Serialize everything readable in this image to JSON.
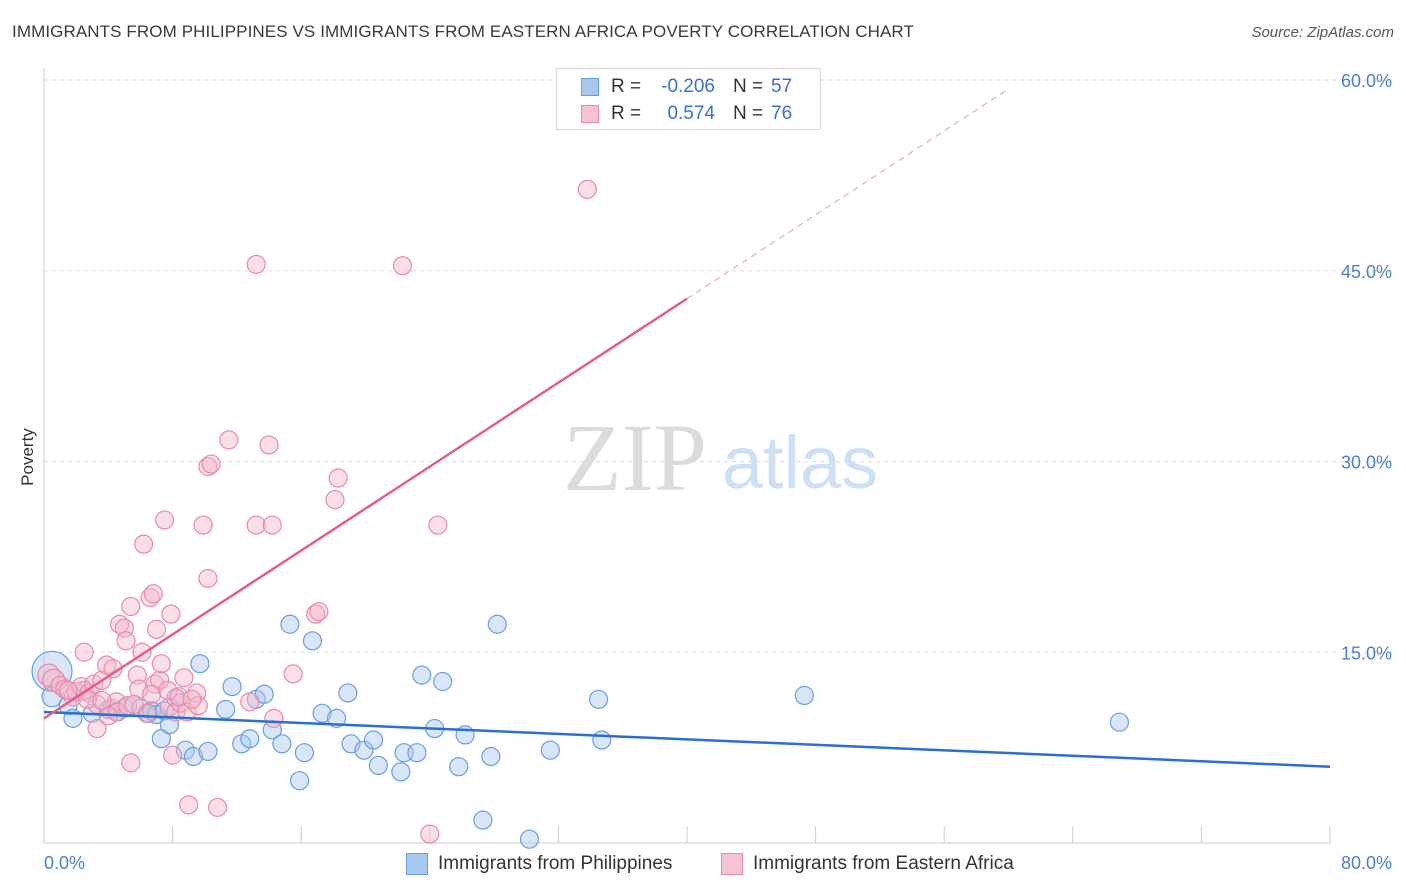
{
  "title": "IMMIGRANTS FROM PHILIPPINES VS IMMIGRANTS FROM EASTERN AFRICA POVERTY CORRELATION CHART",
  "source": "Source: ZipAtlas.com",
  "watermark": {
    "zip": "ZIP",
    "atlas": "atlas"
  },
  "colors": {
    "blue_fill": "#a9c8f0",
    "blue_stroke": "#6a9ee0",
    "blue_line": "#2b6fd0",
    "pink_fill": "#f5b8cc",
    "pink_stroke": "#e98aab",
    "pink_line": "#e0608a",
    "axis_text": "#4a7fd0",
    "grid": "#dddddd"
  },
  "legend_stats": [
    {
      "label": "R =",
      "r": "-0.206",
      "n_label": "N =",
      "n": "57"
    },
    {
      "label": "R =",
      "r": "0.574",
      "n_label": "N =",
      "n": "76"
    }
  ],
  "chart_data": {
    "type": "scatter",
    "title": "IMMIGRANTS FROM PHILIPPINES VS IMMIGRANTS FROM EASTERN AFRICA POVERTY CORRELATION CHART",
    "xlabel": "",
    "ylabel": "Poverty",
    "xlim": [
      0,
      80
    ],
    "ylim": [
      0,
      60
    ],
    "x_tick_labels": [
      "0.0%",
      "80.0%"
    ],
    "y_ticks": [
      15,
      30,
      45,
      60
    ],
    "y_tick_labels": [
      "15.0%",
      "30.0%",
      "45.0%",
      "60.0%"
    ],
    "legend_position": "bottom-center",
    "series": [
      {
        "name": "Immigrants from Philippines",
        "color": "blue",
        "trend": {
          "x0": 0,
          "y0": 10.3,
          "x1": 80,
          "y1": 6.0
        },
        "points": [
          [
            0.5,
            13.5,
            20
          ],
          [
            0.5,
            11.5,
            10
          ],
          [
            1.5,
            10.8,
            9
          ],
          [
            1.8,
            9.8,
            9
          ],
          [
            2.5,
            12.0,
            9
          ],
          [
            3.0,
            10.2,
            9
          ],
          [
            4.0,
            10.5,
            9
          ],
          [
            4.5,
            10.3,
            9
          ],
          [
            5.0,
            10.6,
            9
          ],
          [
            6.0,
            10.6,
            9
          ],
          [
            6.5,
            10.2,
            9
          ],
          [
            6.7,
            10.4,
            9
          ],
          [
            7.0,
            10.1,
            9
          ],
          [
            7.5,
            10.4,
            9
          ],
          [
            7.3,
            8.2,
            9
          ],
          [
            7.8,
            9.3,
            9
          ],
          [
            8.2,
            11.4,
            9
          ],
          [
            8.8,
            7.3,
            9
          ],
          [
            9.3,
            6.8,
            9
          ],
          [
            9.7,
            14.1,
            9
          ],
          [
            10.2,
            7.2,
            9
          ],
          [
            11.3,
            10.5,
            9
          ],
          [
            11.7,
            12.3,
            9
          ],
          [
            12.3,
            7.8,
            9
          ],
          [
            12.8,
            8.2,
            9
          ],
          [
            13.2,
            11.3,
            9
          ],
          [
            13.7,
            11.7,
            9
          ],
          [
            14.2,
            8.9,
            9
          ],
          [
            14.8,
            7.8,
            9
          ],
          [
            15.3,
            17.2,
            9
          ],
          [
            15.9,
            4.9,
            9
          ],
          [
            16.2,
            7.1,
            9
          ],
          [
            16.7,
            15.9,
            9
          ],
          [
            17.3,
            10.2,
            9
          ],
          [
            18.2,
            9.8,
            9
          ],
          [
            18.9,
            11.8,
            9
          ],
          [
            19.1,
            7.8,
            9
          ],
          [
            19.9,
            7.3,
            9
          ],
          [
            20.5,
            8.1,
            9
          ],
          [
            20.8,
            6.1,
            9
          ],
          [
            22.2,
            5.6,
            9
          ],
          [
            22.4,
            7.1,
            9
          ],
          [
            23.2,
            7.1,
            9
          ],
          [
            23.5,
            13.2,
            9
          ],
          [
            24.3,
            9.0,
            9
          ],
          [
            24.8,
            12.7,
            9
          ],
          [
            25.8,
            6.0,
            9
          ],
          [
            26.2,
            8.5,
            9
          ],
          [
            27.3,
            1.8,
            9
          ],
          [
            27.8,
            6.8,
            9
          ],
          [
            28.2,
            17.2,
            9
          ],
          [
            30.2,
            0.3,
            9
          ],
          [
            31.5,
            7.3,
            9
          ],
          [
            34.5,
            11.3,
            9
          ],
          [
            34.7,
            8.1,
            9
          ],
          [
            47.3,
            11.6,
            9
          ],
          [
            66.9,
            9.5,
            9
          ]
        ]
      },
      {
        "name": "Immigrants from Eastern Africa",
        "color": "pink",
        "trend": {
          "x0": 0,
          "y0": 9.8,
          "x1": 40,
          "y1": 42.8
        },
        "trend_dashed": {
          "x0": 40,
          "y0": 42.8,
          "x1": 60,
          "y1": 59.3
        },
        "points": [
          [
            0.3,
            13.2,
            11
          ],
          [
            0.6,
            12.8,
            11
          ],
          [
            1.0,
            12.4,
            9
          ],
          [
            1.3,
            12.1,
            9
          ],
          [
            1.8,
            11.5,
            9
          ],
          [
            2.0,
            11.9,
            9
          ],
          [
            2.3,
            12.3,
            9
          ],
          [
            2.5,
            15.0,
            9
          ],
          [
            2.8,
            11.8,
            9
          ],
          [
            3.1,
            12.5,
            9
          ],
          [
            3.3,
            10.9,
            9
          ],
          [
            3.3,
            9.0,
            9
          ],
          [
            3.6,
            12.8,
            9
          ],
          [
            3.9,
            14.0,
            9
          ],
          [
            4.2,
            10.6,
            9
          ],
          [
            4.3,
            13.7,
            9
          ],
          [
            4.5,
            11.1,
            9
          ],
          [
            4.6,
            10.3,
            9
          ],
          [
            4.7,
            17.2,
            9
          ],
          [
            5.0,
            16.9,
            9
          ],
          [
            5.1,
            15.9,
            9
          ],
          [
            5.2,
            10.8,
            9
          ],
          [
            5.4,
            18.6,
            9
          ],
          [
            5.4,
            6.3,
            9
          ],
          [
            5.8,
            13.2,
            9
          ],
          [
            5.9,
            12.1,
            9
          ],
          [
            6.1,
            15.0,
            9
          ],
          [
            6.2,
            23.5,
            9
          ],
          [
            6.4,
            10.2,
            9
          ],
          [
            6.6,
            19.3,
            9
          ],
          [
            6.8,
            19.6,
            9
          ],
          [
            6.9,
            12.5,
            9
          ],
          [
            7.0,
            16.8,
            9
          ],
          [
            7.2,
            12.8,
            9
          ],
          [
            7.3,
            14.1,
            9
          ],
          [
            7.5,
            25.4,
            9
          ],
          [
            7.8,
            10.7,
            9
          ],
          [
            7.9,
            18.0,
            9
          ],
          [
            8.0,
            6.9,
            9
          ],
          [
            8.2,
            10.3,
            9
          ],
          [
            8.5,
            11.0,
            9
          ],
          [
            8.7,
            13.0,
            9
          ],
          [
            8.9,
            10.3,
            9
          ],
          [
            9.0,
            3.0,
            9
          ],
          [
            9.5,
            11.8,
            9
          ],
          [
            9.6,
            10.8,
            9
          ],
          [
            9.9,
            25.0,
            9
          ],
          [
            10.2,
            29.6,
            9
          ],
          [
            10.2,
            20.8,
            9
          ],
          [
            10.4,
            29.8,
            9
          ],
          [
            10.8,
            2.8,
            9
          ],
          [
            11.5,
            31.7,
            9
          ],
          [
            12.8,
            11.1,
            9
          ],
          [
            13.2,
            45.5,
            9
          ],
          [
            13.2,
            25.0,
            9
          ],
          [
            14.0,
            31.3,
            9
          ],
          [
            14.2,
            25.0,
            9
          ],
          [
            14.3,
            9.8,
            9
          ],
          [
            15.5,
            13.3,
            9
          ],
          [
            16.9,
            18.0,
            9
          ],
          [
            17.1,
            18.2,
            9
          ],
          [
            18.1,
            27.0,
            9
          ],
          [
            18.3,
            28.7,
            9
          ],
          [
            22.3,
            45.4,
            9
          ],
          [
            24.0,
            0.7,
            9
          ],
          [
            24.5,
            25.0,
            9
          ],
          [
            33.8,
            51.4,
            9
          ],
          [
            1.5,
            12.0,
            9
          ],
          [
            2.7,
            11.3,
            9
          ],
          [
            4.0,
            10.0,
            9
          ],
          [
            5.6,
            10.9,
            9
          ],
          [
            6.7,
            11.7,
            9
          ],
          [
            7.7,
            12.0,
            9
          ],
          [
            8.4,
            11.5,
            9
          ],
          [
            9.2,
            11.3,
            9
          ],
          [
            3.6,
            11.2,
            9
          ]
        ]
      }
    ]
  }
}
